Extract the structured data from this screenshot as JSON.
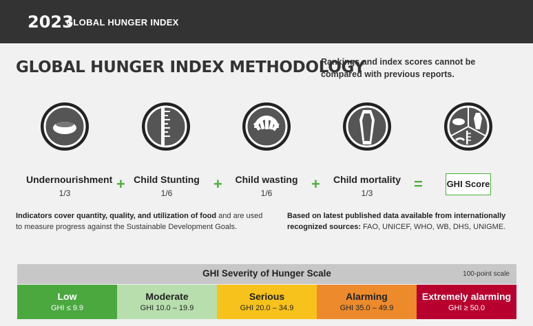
{
  "header": {
    "year": "2023",
    "brand": "GLOBAL HUNGER INDEX"
  },
  "title": "GLOBAL HUNGER INDEX METHODOLOGY",
  "note": "Rankings and index scores cannot be compared with previous reports.",
  "indicators": [
    {
      "name": "Undernourishment",
      "weight": "1/3",
      "icon": "bowl-icon"
    },
    {
      "name": "Child Stunting",
      "weight": "1/6",
      "icon": "height-ruler-icon"
    },
    {
      "name": "Child wasting",
      "weight": "1/6",
      "icon": "scale-icon"
    },
    {
      "name": "Child mortality",
      "weight": "1/3",
      "icon": "coffin-icon"
    }
  ],
  "operators": [
    "+",
    "+",
    "+",
    "="
  ],
  "result": {
    "label": "GHI Score",
    "icon": "ghi-composite-icon"
  },
  "footnotes": {
    "left_bold": "Indicators cover quantity, quality, and utilization of food",
    "left_rest": " and are used to measure progress against the Sustainable Development Goals.",
    "right_bold": "Based on latest published data available from internationally recognized sources:",
    "right_rest": " FAO, UNICEF, WHO, WB, DHS, UNIGME."
  },
  "scale": {
    "title": "GHI Severity of Hunger Scale",
    "subtitle": "100-point scale",
    "bands": [
      {
        "label": "Low",
        "range": "GHI ≤ 9.9",
        "bg": "#4aa83f",
        "fg": "#ffffff"
      },
      {
        "label": "Moderate",
        "range": "GHI 10.0 – 19.9",
        "bg": "#b8deae",
        "fg": "#222222"
      },
      {
        "label": "Serious",
        "range": "GHI 20.0 – 34.9",
        "bg": "#f7c21b",
        "fg": "#222222"
      },
      {
        "label": "Alarming",
        "range": "GHI 35.0 – 49.9",
        "bg": "#ec8a2c",
        "fg": "#222222"
      },
      {
        "label": "Extremely alarming",
        "range": "GHI ≥ 50.0",
        "bg": "#b8002e",
        "fg": "#ffffff"
      }
    ]
  },
  "colors": {
    "accent_green": "#4fae3d",
    "dark": "#333333"
  }
}
